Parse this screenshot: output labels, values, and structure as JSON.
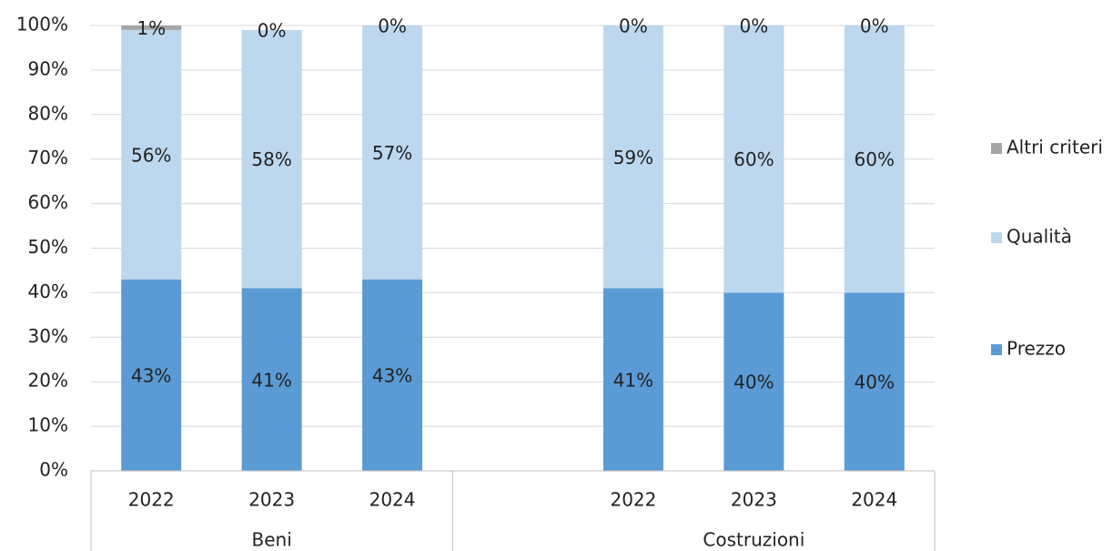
{
  "chart_data": {
    "type": "stacked_bar",
    "categories": [
      "2022",
      "2023",
      "2024",
      null,
      "2022",
      "2023",
      "2024"
    ],
    "groups": [
      "Beni",
      "Costruzioni"
    ],
    "series": [
      {
        "name": "Prezzo",
        "color": "#5b9bd5",
        "values": [
          43,
          41,
          43,
          null,
          41,
          40,
          40
        ],
        "value_labels": [
          "43%",
          "41%",
          "43%",
          null,
          "41%",
          "40%",
          "40%"
        ]
      },
      {
        "name": "Qualità",
        "color": "#bdd7ee",
        "values": [
          56,
          58,
          57,
          null,
          59,
          60,
          60
        ],
        "value_labels": [
          "56%",
          "58%",
          "57%",
          null,
          "59%",
          "60%",
          "60%"
        ]
      },
      {
        "name": "Altri criteri",
        "color": "#a5a5a5",
        "values": [
          1,
          0,
          0,
          null,
          0,
          0,
          0
        ],
        "value_labels": [
          "1%",
          "0%",
          "0%",
          null,
          "0%",
          "0%",
          "0%"
        ]
      }
    ],
    "ylim": [
      0,
      100
    ],
    "yticks": [
      {
        "value": 0,
        "label": "0%"
      },
      {
        "value": 10,
        "label": "10%"
      },
      {
        "value": 20,
        "label": "20%"
      },
      {
        "value": 30,
        "label": "30%"
      },
      {
        "value": 40,
        "label": "40%"
      },
      {
        "value": 50,
        "label": "50%"
      },
      {
        "value": 60,
        "label": "60%"
      },
      {
        "value": 70,
        "label": "70%"
      },
      {
        "value": 80,
        "label": "80%"
      },
      {
        "value": 90,
        "label": "90%"
      },
      {
        "value": 100,
        "label": "100%"
      }
    ],
    "grid": true,
    "legend": "right"
  }
}
